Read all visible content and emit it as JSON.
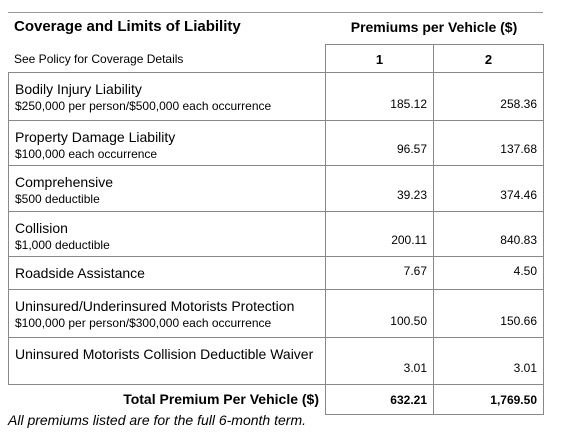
{
  "header": {
    "title": "Coverage and Limits of Liability",
    "premiums_heading": "Premiums per Vehicle ($)",
    "subtitle": "See Policy for Coverage Details",
    "columns": [
      "1",
      "2"
    ]
  },
  "table": {
    "rows": [
      {
        "title": "Bodily Injury Liability",
        "detail": "$250,000 per person/$500,000 each occurrence",
        "values": [
          "185.12",
          "258.36"
        ]
      },
      {
        "title": "Property Damage Liability",
        "detail": "$100,000 each occurrence",
        "values": [
          "96.57",
          "137.68"
        ]
      },
      {
        "title": "Comprehensive",
        "detail": "$500 deductible",
        "values": [
          "39.23",
          "374.46"
        ]
      },
      {
        "title": "Collision",
        "detail": "$1,000 deductible",
        "values": [
          "200.11",
          "840.83"
        ]
      },
      {
        "title": "Roadside Assistance",
        "values": [
          "7.67",
          "4.50"
        ]
      },
      {
        "title": "Uninsured/Underinsured Motorists Protection",
        "detail": "$100,000 per person/$300,000 each occurrence",
        "values": [
          "100.50",
          "150.66"
        ]
      },
      {
        "title": "Uninsured Motorists Collision Deductible Waiver",
        "values": [
          "3.01",
          "3.01"
        ]
      }
    ],
    "total": {
      "label": "Total Premium Per Vehicle ($)",
      "values": [
        "632.21",
        "1,769.50"
      ]
    }
  },
  "footnote": "All premiums listed are for the full 6-month term."
}
